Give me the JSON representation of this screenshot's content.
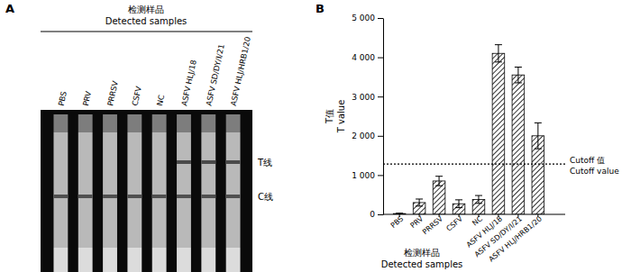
{
  "chart_data": [
    {
      "type": "test_strips",
      "panel_label": "A",
      "title": "检测样品",
      "subtitle": "Detected samples",
      "categories": [
        "PBS",
        "PRV",
        "PRRSV",
        "CSFV",
        "NC",
        "ASFV HLJ/18",
        "ASFV SD/DY/I/21",
        "ASFV HLJ/HRB1/20"
      ],
      "t_line": [
        false,
        false,
        false,
        false,
        false,
        true,
        true,
        true
      ],
      "line_labels": [
        "T线",
        "C线"
      ]
    },
    {
      "type": "bar",
      "panel_label": "B",
      "ylabel": [
        "T值",
        "T value"
      ],
      "xlabel": [
        "检测样品",
        "Detected samples"
      ],
      "categories": [
        "PBS",
        "PRV",
        "PRRSV",
        "CSFV",
        "NC",
        "ASFV HLJ/18",
        "ASFV SD/DY/I/21",
        "ASFV HLJ/HRB1/20"
      ],
      "values": [
        20,
        300,
        850,
        270,
        380,
        4100,
        3550,
        2000
      ],
      "errors": [
        10,
        90,
        120,
        100,
        100,
        220,
        200,
        330
      ],
      "color": "#000000",
      "ylim": [
        0,
        5000
      ],
      "yticks": [
        0,
        {
          "value": 1000,
          "label": "1 000"
        },
        {
          "value": 2000,
          "label": "2 000"
        },
        {
          "value": 3000,
          "label": "3 000"
        },
        {
          "value": 4000,
          "label": "4 000"
        },
        {
          "value": 5000,
          "label": "5 000"
        }
      ],
      "cutoff": 1280,
      "cutoff_label": [
        "Cutoff 值",
        "Cutoff value"
      ]
    }
  ]
}
